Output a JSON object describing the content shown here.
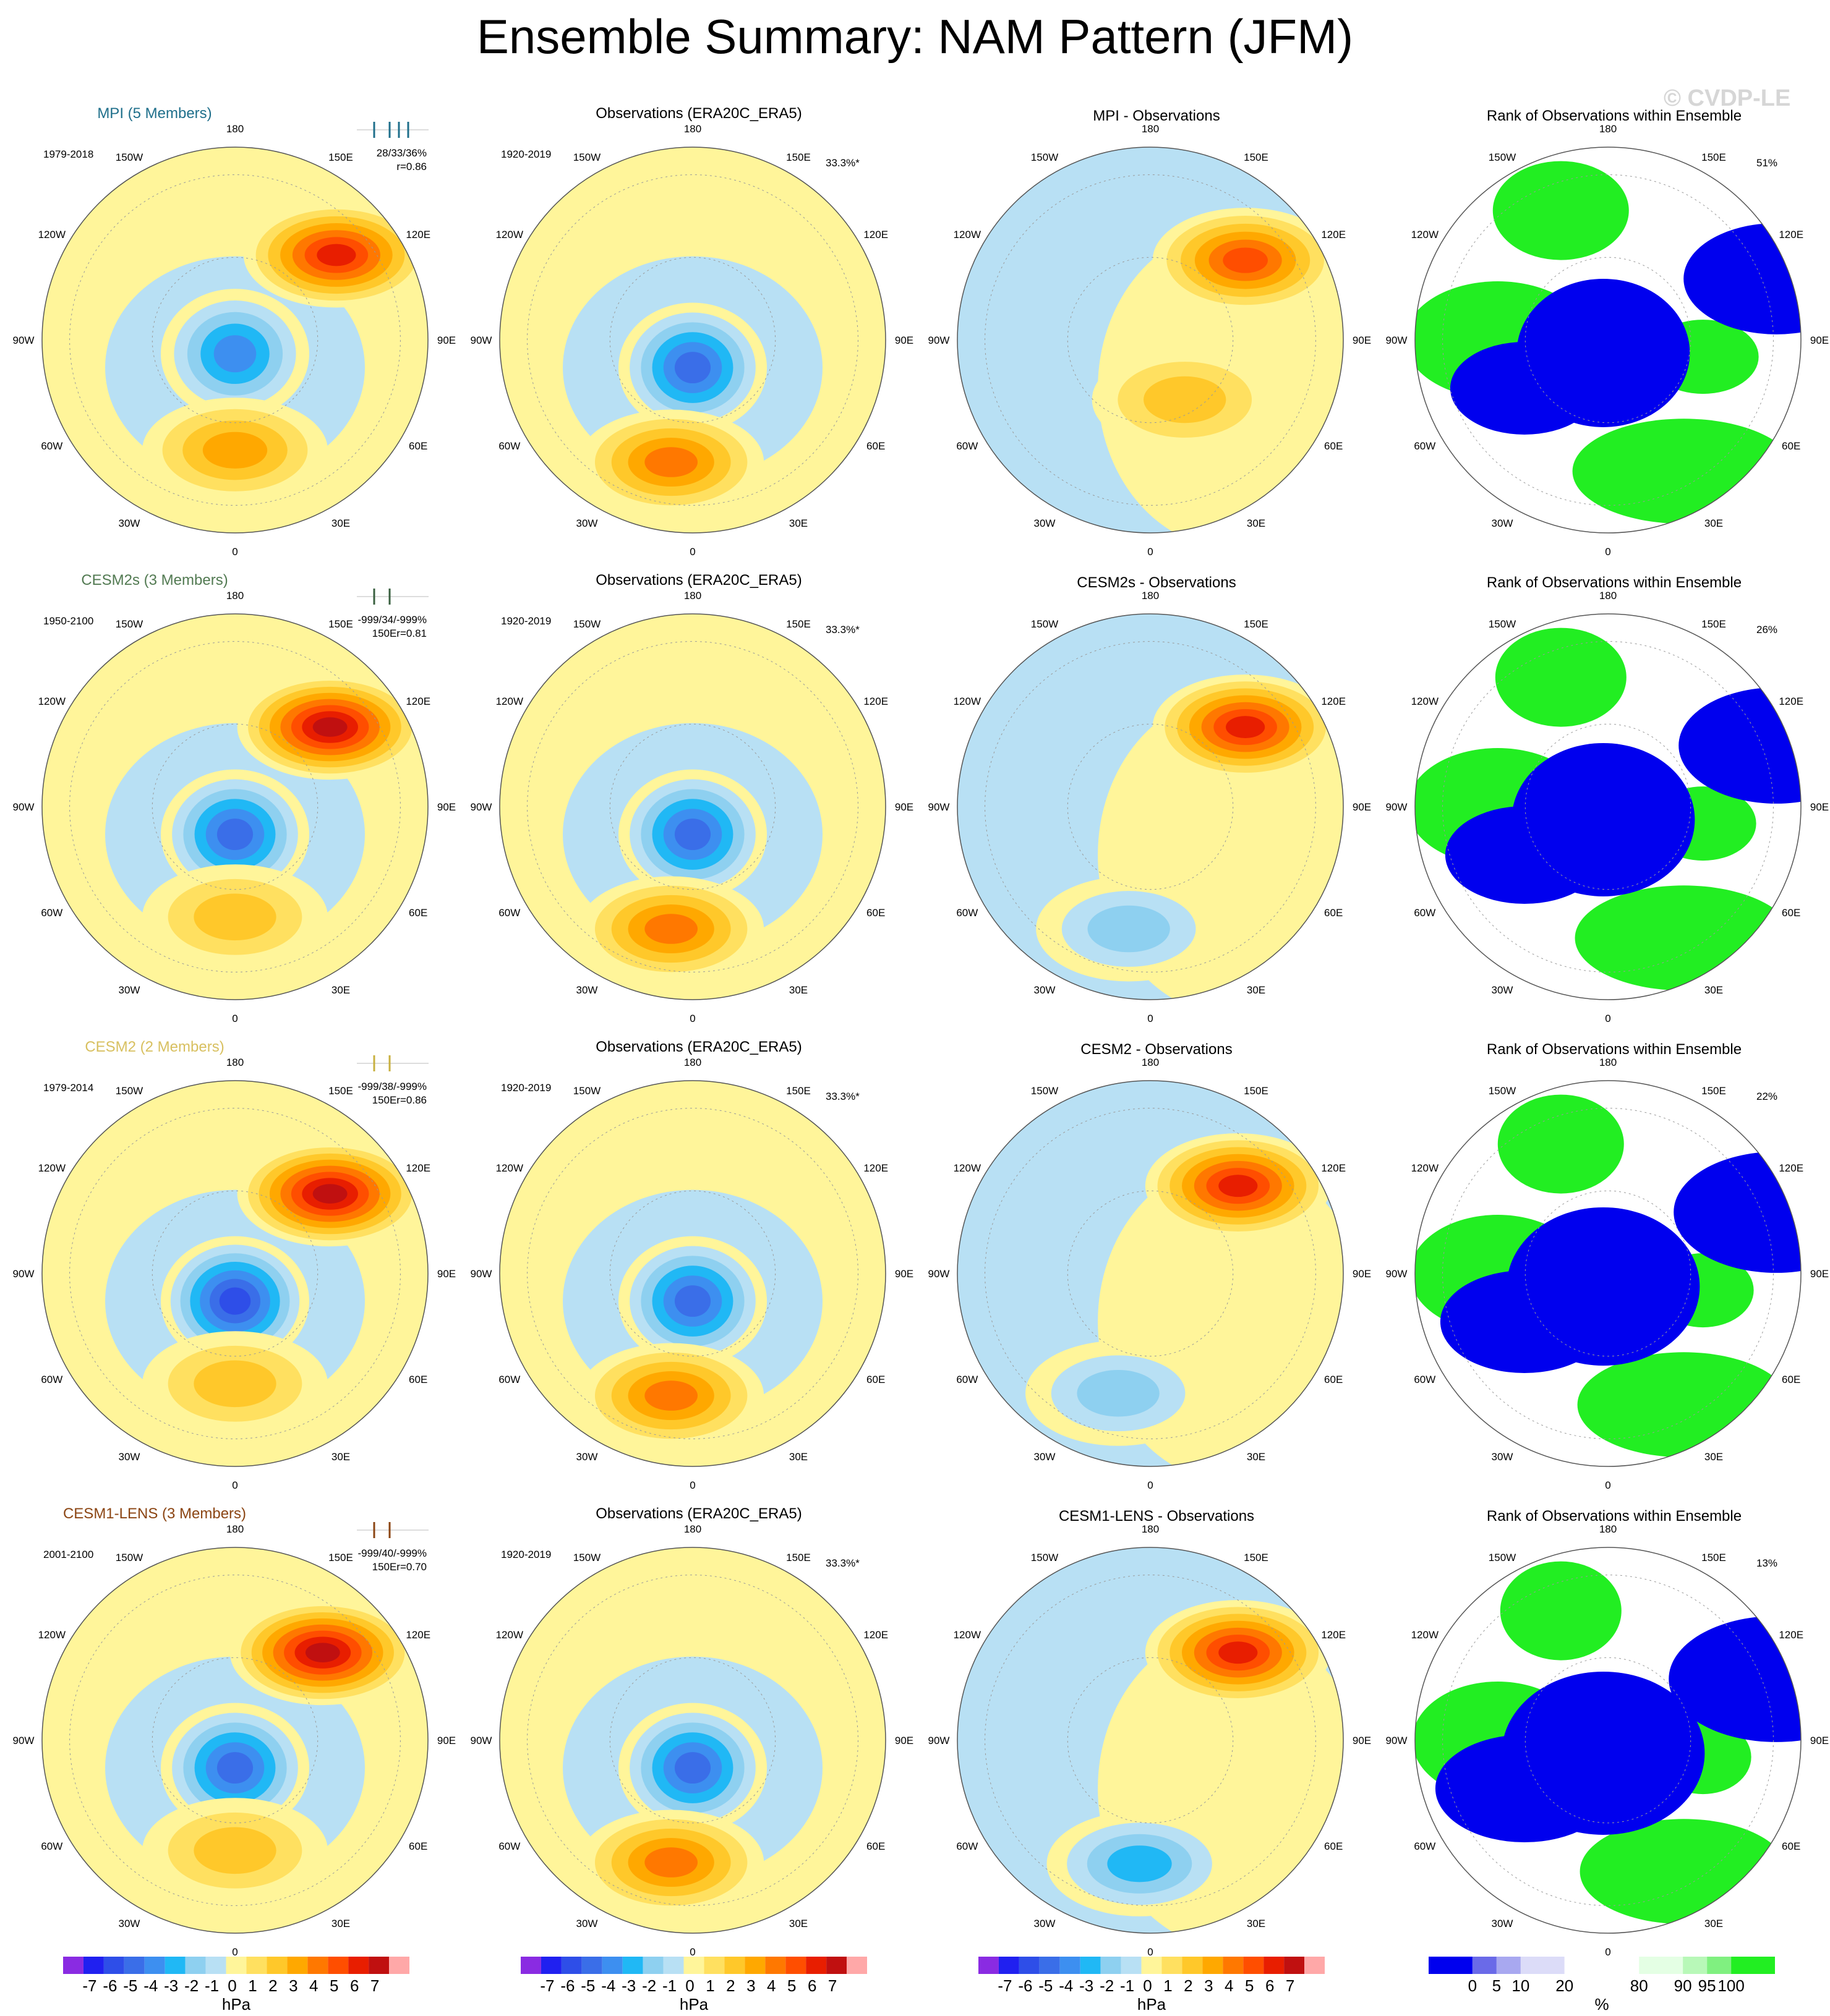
{
  "title": "Ensemble Summary: NAM Pattern (JFM)",
  "watermark": "© CVDP-LE",
  "lon_labels": [
    "180",
    "150E",
    "120E",
    "90E",
    "60E",
    "30E",
    "0",
    "30W",
    "60W",
    "90W",
    "120W",
    "150W"
  ],
  "colors": {
    "pattern": [
      "#8a2be2",
      "#2020f0",
      "#2e4ee8",
      "#3a6ee8",
      "#3d8ff0",
      "#20b8f5",
      "#8ed0f0",
      "#b8e0f4",
      "#fff59a",
      "#ffe060",
      "#ffc82a",
      "#ffa800",
      "#ff7800",
      "#ff4e00",
      "#e81e00",
      "#c01010",
      "#ffa8a8"
    ],
    "rank": [
      "#0000ee",
      "#6a6ae8",
      "#a8a8f0",
      "#dcdcf8",
      "#ffffff",
      "#e4ffe4",
      "#b8f8b8",
      "#80f080",
      "#22ee22"
    ],
    "ensemble_title": [
      "#1f6f8b",
      "#527a52",
      "#d8c060",
      "#8b4513"
    ],
    "member_bar": [
      "#1f6f8b",
      "#3a6040",
      "#c8b040",
      "#8b4513"
    ]
  },
  "chart_data": [
    {
      "type": "heatmap",
      "field": "NAM pattern (JFM)",
      "units": "hPa",
      "rows": [
        {
          "title": "MPI (5 Members)",
          "period": "1979-2018",
          "stats1": "28/33/36%",
          "stats2": "r=0.86",
          "anomalies": [
            {
              "lon": 130,
              "lat": 42,
              "value": 6
            },
            {
              "lon": 0,
              "lat": 85,
              "value": -4
            },
            {
              "lon": 0,
              "lat": 50,
              "value": 3
            }
          ]
        },
        {
          "title": "CESM2s (3 Members)",
          "period": "1950-2100",
          "stats1": "-999/34/-999%",
          "stats2": "150Er=0.81",
          "anomalies": [
            {
              "lon": 130,
              "lat": 45,
              "value": 7
            },
            {
              "lon": 0,
              "lat": 80,
              "value": -5
            },
            {
              "lon": 0,
              "lat": 50,
              "value": 2
            }
          ]
        },
        {
          "title": "CESM2 (2 Members)",
          "period": "1979-2014",
          "stats1": "-999/38/-999%",
          "stats2": "150Er=0.86",
          "anomalies": [
            {
              "lon": 130,
              "lat": 45,
              "value": 7
            },
            {
              "lon": 0,
              "lat": 80,
              "value": -6
            },
            {
              "lon": 0,
              "lat": 50,
              "value": 2
            }
          ]
        },
        {
          "title": "CESM1-LENS (3 Members)",
          "period": "2001-2100",
          "stats1": "-999/40/-999%",
          "stats2": "150Er=0.70",
          "anomalies": [
            {
              "lon": 135,
              "lat": 45,
              "value": 7
            },
            {
              "lon": 0,
              "lat": 80,
              "value": -5
            },
            {
              "lon": 0,
              "lat": 50,
              "value": 2
            }
          ]
        }
      ]
    },
    {
      "type": "heatmap",
      "field": "Observations",
      "units": "hPa",
      "title": "Observations (ERA20C_ERA5)",
      "period": "1920-2019",
      "pct": "33.3%*",
      "anomalies": [
        {
          "lon": 0,
          "lat": 80,
          "value": -5
        },
        {
          "lon": -10,
          "lat": 45,
          "value": 4
        }
      ]
    },
    {
      "type": "heatmap",
      "field": "Ensemble minus Observations",
      "units": "hPa",
      "rows": [
        {
          "title": "MPI - Observations",
          "anomalies": [
            {
              "lon": 130,
              "lat": 45,
              "value": 5
            },
            {
              "lon": 30,
              "lat": 65,
              "value": 2
            }
          ]
        },
        {
          "title": "CESM2s - Observations",
          "anomalies": [
            {
              "lon": 130,
              "lat": 45,
              "value": 6
            },
            {
              "lon": -10,
              "lat": 45,
              "value": -2
            }
          ]
        },
        {
          "title": "CESM2 - Observations",
          "anomalies": [
            {
              "lon": 135,
              "lat": 45,
              "value": 6
            },
            {
              "lon": -15,
              "lat": 45,
              "value": -2
            }
          ]
        },
        {
          "title": "CESM1-LENS - Observations",
          "anomalies": [
            {
              "lon": 135,
              "lat": 45,
              "value": 6
            },
            {
              "lon": -5,
              "lat": 45,
              "value": -3
            }
          ]
        }
      ]
    },
    {
      "type": "heatmap",
      "field": "Rank of Observations within Ensemble",
      "units": "%",
      "title": "Rank of Observations within Ensemble",
      "rows": [
        {
          "pct": "51%"
        },
        {
          "pct": "26%"
        },
        {
          "pct": "22%"
        },
        {
          "pct": "13%"
        }
      ]
    },
    {
      "type": "colorbar",
      "units": "hPa",
      "ticks": [
        "-7",
        "-6",
        "-5",
        "-4",
        "-3",
        "-2",
        "-1",
        "0",
        "1",
        "2",
        "3",
        "4",
        "5",
        "6",
        "7"
      ]
    },
    {
      "type": "colorbar",
      "units": "%",
      "ticks": [
        "0",
        "5",
        "10",
        "20",
        "80",
        "90",
        "95",
        "100"
      ]
    }
  ]
}
